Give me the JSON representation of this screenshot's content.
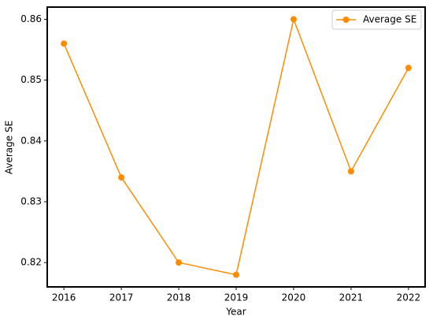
{
  "chart_data": {
    "type": "line",
    "x": [
      2016,
      2017,
      2018,
      2019,
      2020,
      2021,
      2022
    ],
    "series": [
      {
        "name": "Average SE",
        "color": "#ff8c00",
        "values": [
          0.856,
          0.834,
          0.82,
          0.818,
          0.86,
          0.835,
          0.852
        ]
      }
    ],
    "xlabel": "Year",
    "ylabel": "Average SE",
    "xlim": [
      2015.71,
      2022.29
    ],
    "xticks": [
      2016,
      2017,
      2018,
      2019,
      2020,
      2021,
      2022
    ],
    "ylim": [
      0.816,
      0.862
    ],
    "yticks": [
      0.82,
      0.83,
      0.84,
      0.85,
      0.86
    ],
    "legend": "upper right",
    "grid": false
  }
}
